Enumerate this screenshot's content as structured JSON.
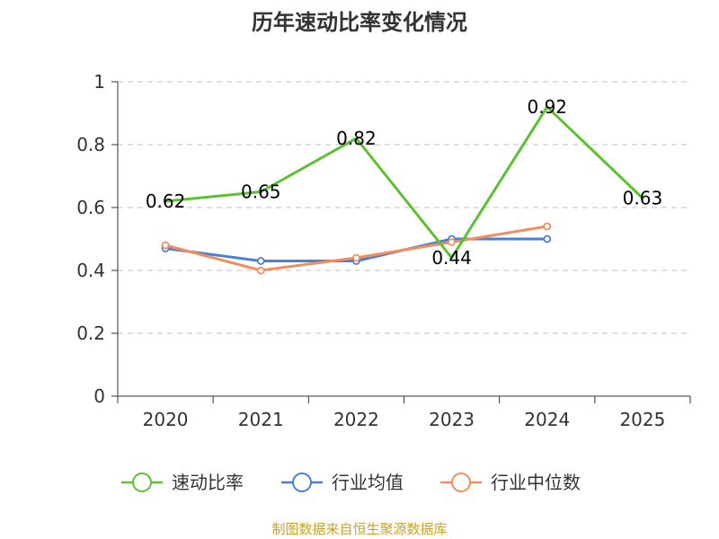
{
  "chart_data": {
    "type": "line",
    "title": "历年速动比率变化情况",
    "categories": [
      "2020",
      "2021",
      "2022",
      "2023",
      "2024",
      "2025"
    ],
    "ylim": [
      0,
      1
    ],
    "yticks": [
      "0",
      "0.2",
      "0.4",
      "0.6",
      "0.8",
      "1"
    ],
    "grid": true,
    "legend_position": "bottom",
    "series": [
      {
        "name": "速动比率",
        "color": "#5cc12f",
        "values": [
          0.62,
          0.65,
          0.82,
          0.44,
          0.92,
          0.63
        ],
        "labels": [
          "0.62",
          "0.65",
          "0.82",
          "0.44",
          "0.92",
          "0.63"
        ]
      },
      {
        "name": "行业均值",
        "color": "#4a7fd6",
        "values": [
          0.47,
          0.43,
          0.43,
          0.5,
          0.5,
          null
        ]
      },
      {
        "name": "行业中位数",
        "color": "#f28e5c",
        "values": [
          0.48,
          0.4,
          0.44,
          0.49,
          0.54,
          null
        ]
      }
    ],
    "source": "制图数据来自恒生聚源数据库"
  }
}
